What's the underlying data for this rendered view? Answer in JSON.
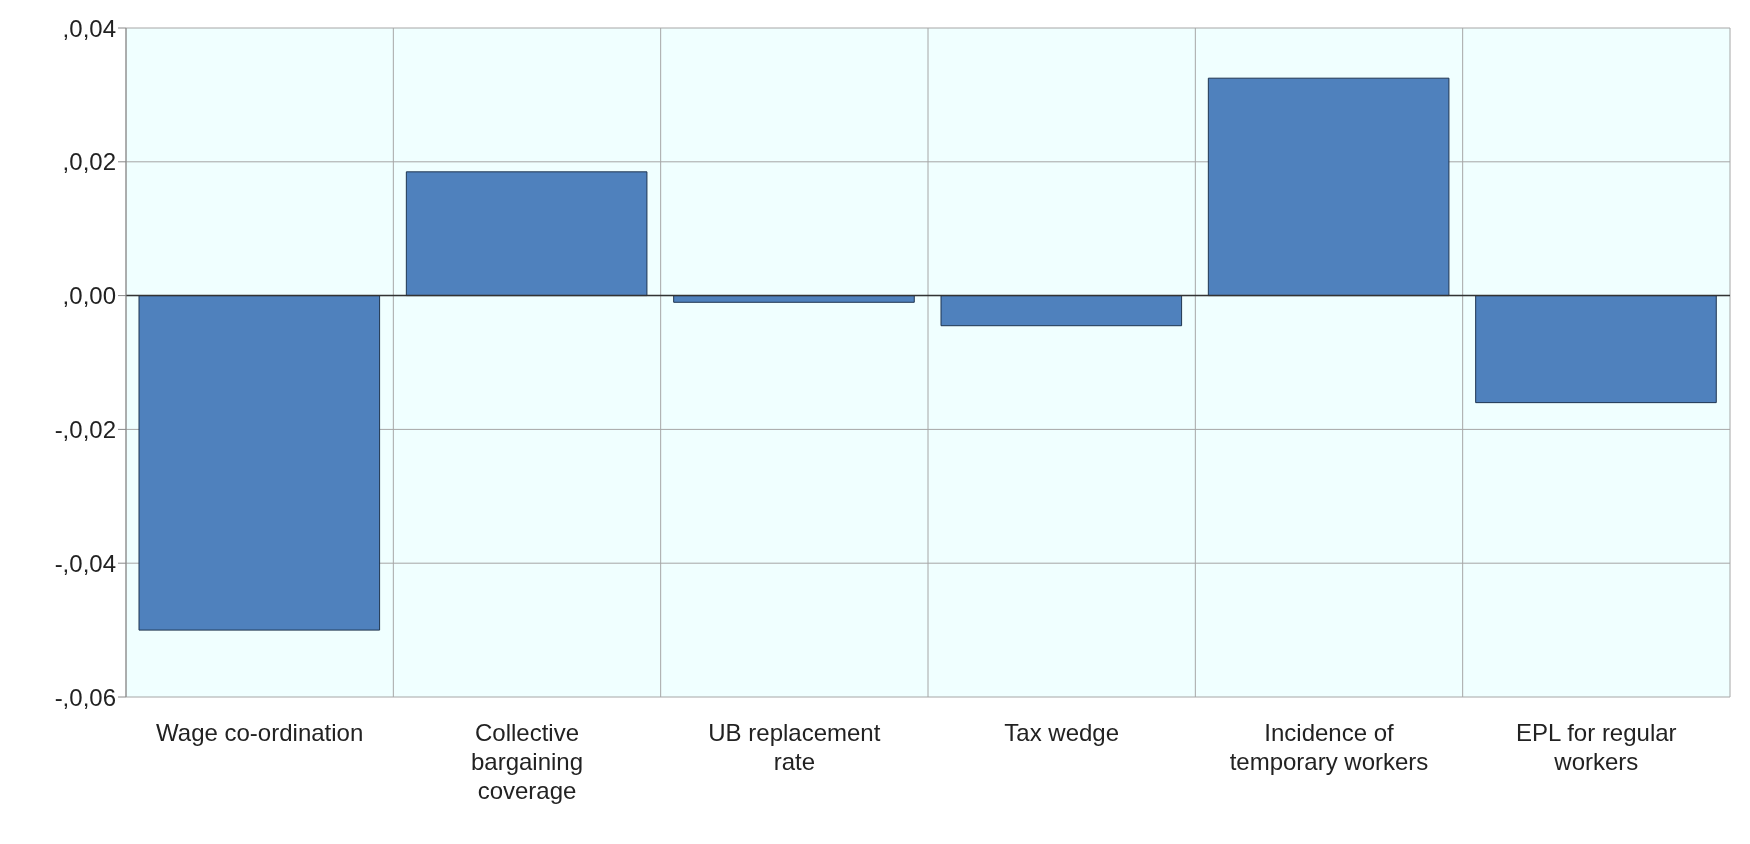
{
  "chart_data": {
    "type": "bar",
    "categories": [
      "Wage co-ordination",
      "Collective bargaining coverage",
      "UB replacement rate",
      "Tax wedge",
      "Incidence of temporary workers",
      "EPL for regular workers"
    ],
    "values": [
      -0.05,
      0.0185,
      -0.001,
      -0.0045,
      0.0325,
      -0.016
    ],
    "color": "#4f81bd",
    "ylim": [
      -0.06,
      0.04
    ],
    "yticks": [
      {
        "value": -0.06,
        "label": "-,0,06"
      },
      {
        "value": -0.04,
        "label": "-,0,04"
      },
      {
        "value": -0.02,
        "label": "-,0,02"
      },
      {
        "value": 0,
        "label": ",0,00"
      },
      {
        "value": 0.02,
        "label": ",0,02"
      },
      {
        "value": 0.04,
        "label": ",0,04"
      }
    ],
    "ref_lines": [
      {
        "axis": "y",
        "value": 0,
        "color": "#333333"
      }
    ],
    "grid": true
  }
}
